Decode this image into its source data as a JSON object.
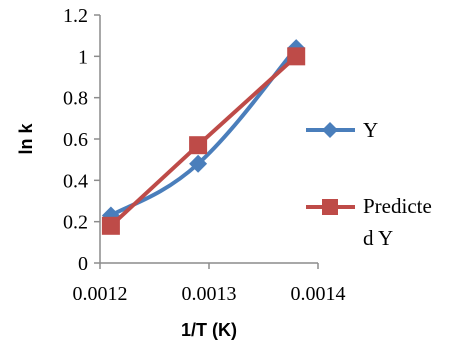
{
  "chart_data": {
    "type": "line",
    "xlabel": "1/T (K)",
    "ylabel": "ln k",
    "xlim": [
      0.0012,
      0.0014
    ],
    "ylim": [
      0,
      1.2
    ],
    "x_ticks": [
      "0.0012",
      "0.0013",
      "0.0014"
    ],
    "y_ticks": [
      "0",
      "0.2",
      "0.4",
      "0.6",
      "0.8",
      "1",
      "1.2"
    ],
    "grid": false,
    "legend_position": "right",
    "series": [
      {
        "name": "Y",
        "marker": "diamond",
        "color": "#4a7ebb",
        "smooth": true,
        "x": [
          0.00121,
          0.00129,
          0.00138
        ],
        "y": [
          0.23,
          0.48,
          1.04
        ]
      },
      {
        "name": "Predicted Y",
        "legend_lines": [
          "Predicte",
          "d Y"
        ],
        "marker": "square",
        "color": "#be4b48",
        "smooth": false,
        "x": [
          0.00121,
          0.00129,
          0.00138
        ],
        "y": [
          0.18,
          0.57,
          1.0
        ]
      }
    ]
  }
}
